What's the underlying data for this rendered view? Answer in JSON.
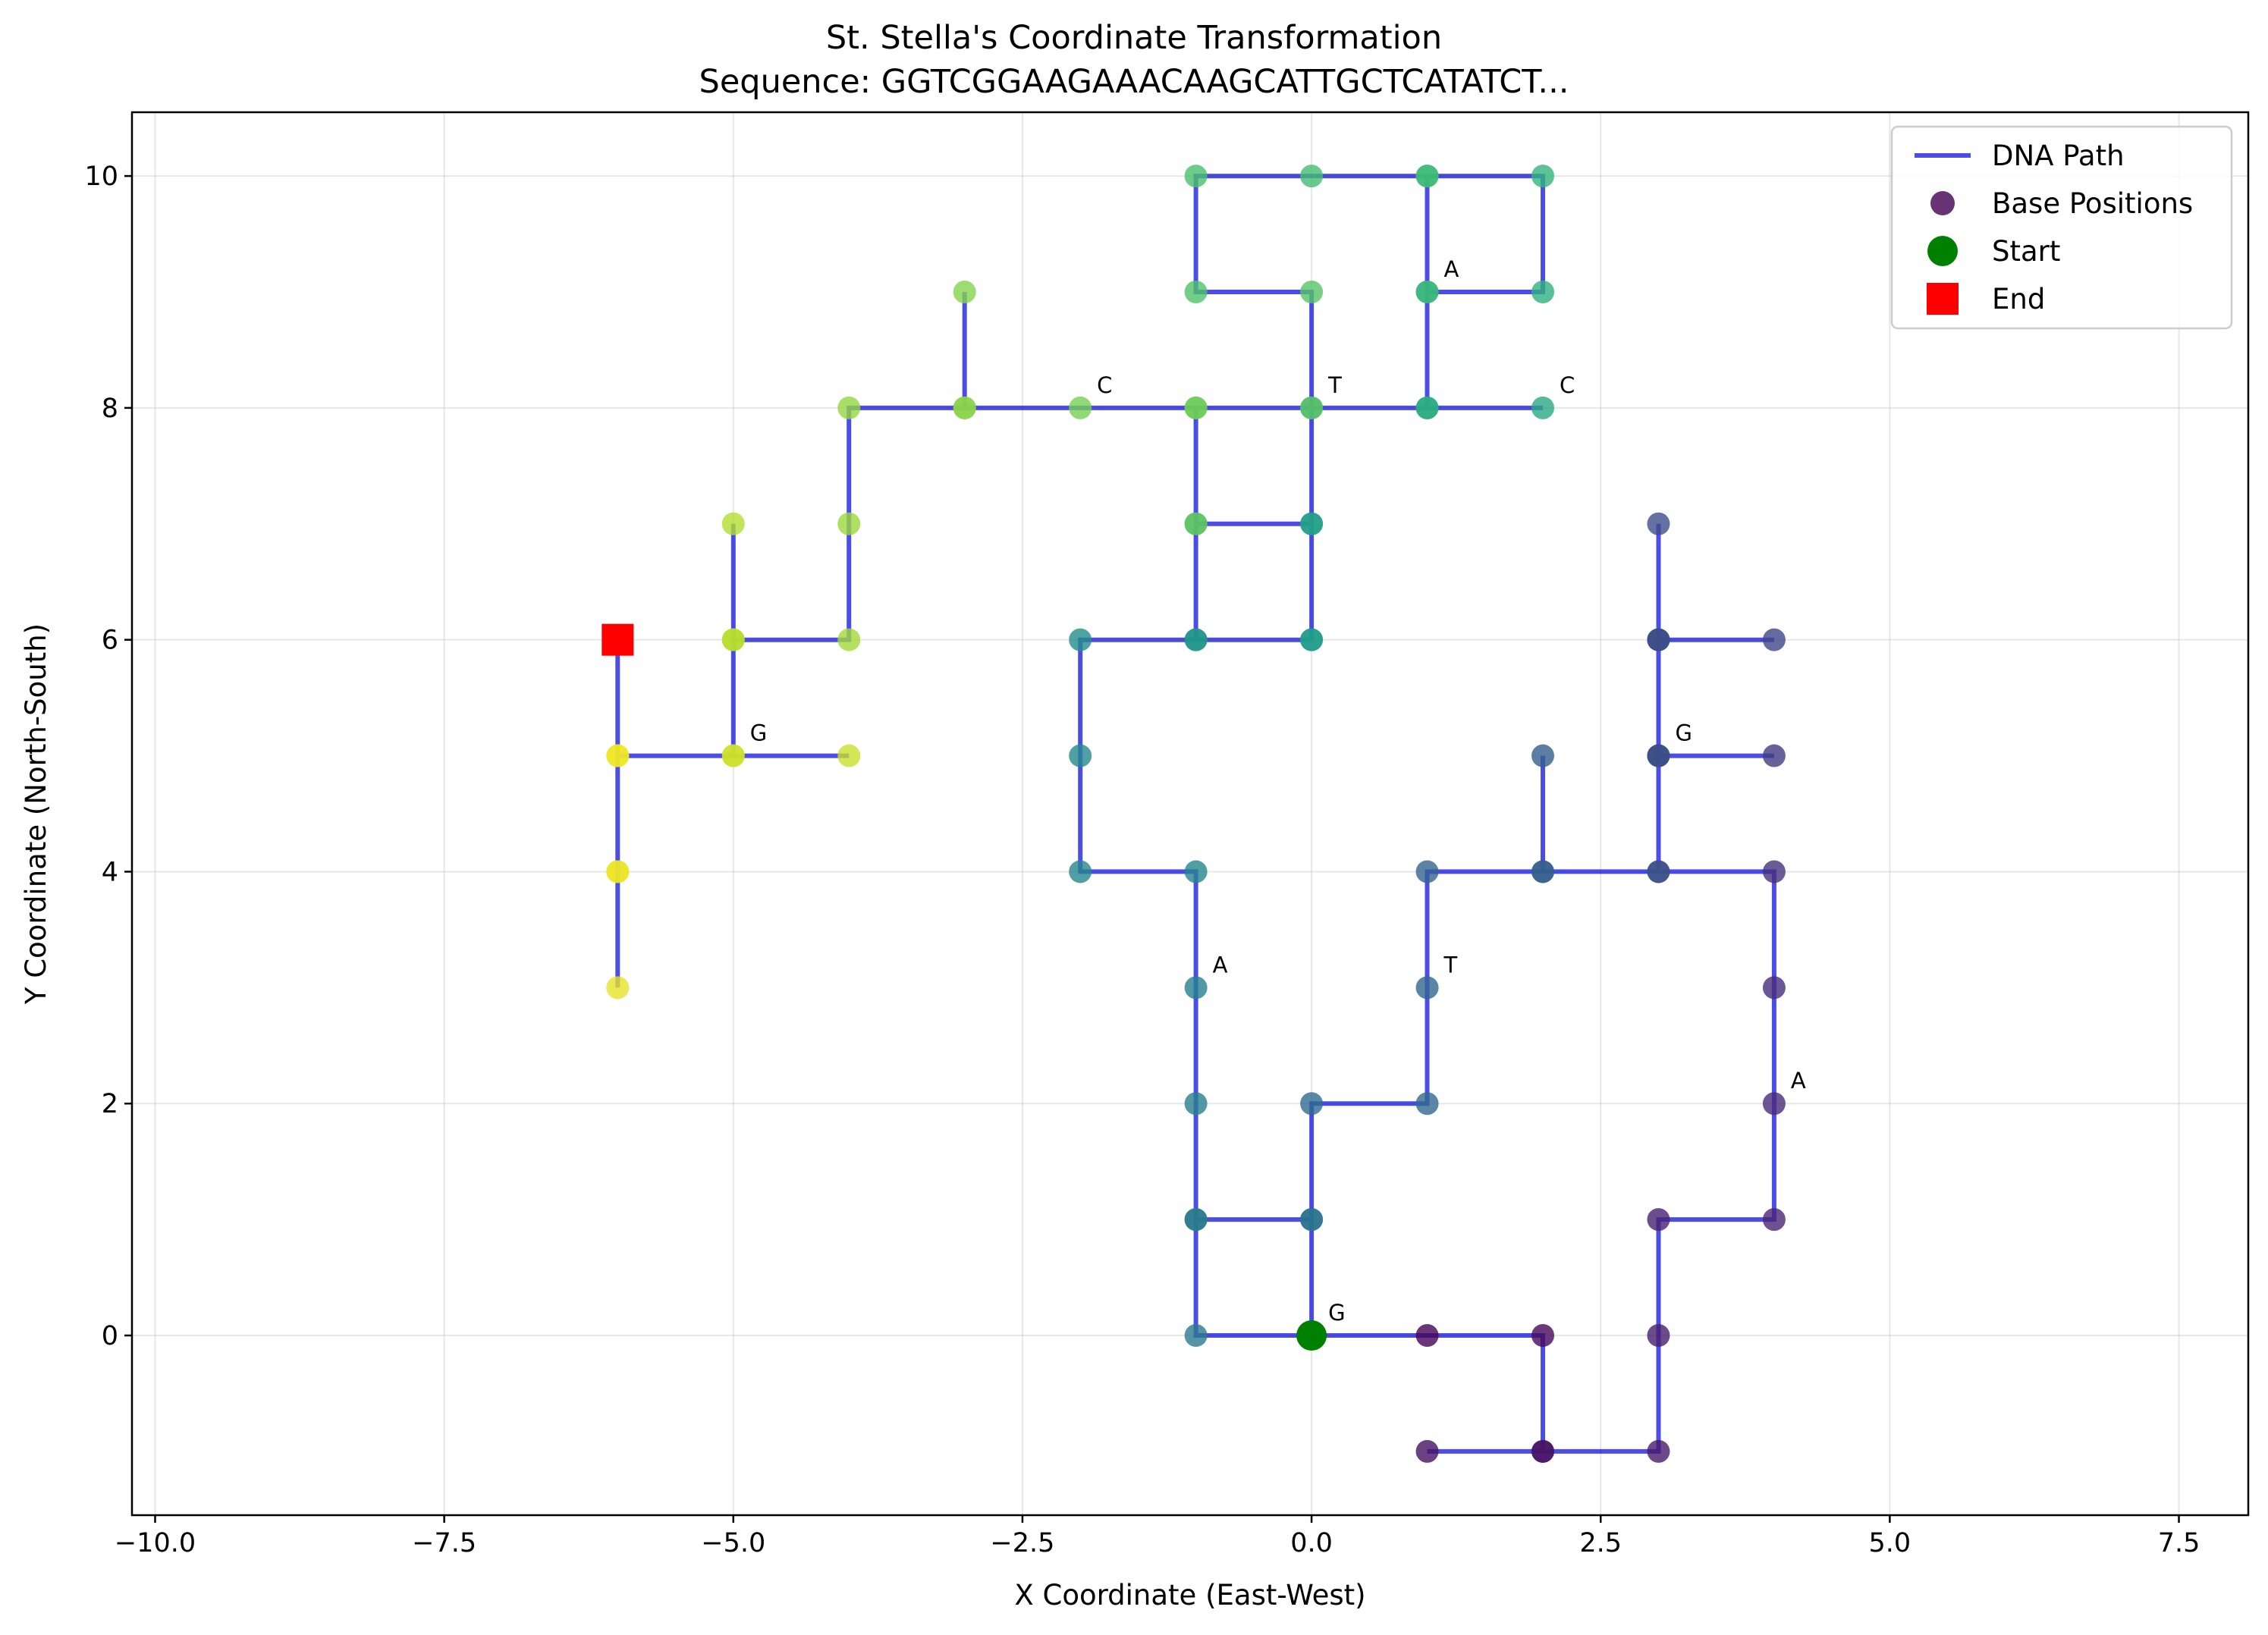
{
  "chart_data": {
    "type": "line",
    "title": "St. Stella's Coordinate Transformation",
    "subtitle": "Sequence: GGTCGGAAGAAACAAGCATTGCTCATATCT...",
    "xlabel": "X Coordinate (East-West)",
    "ylabel": "Y Coordinate (North-South)",
    "xlim": [
      -10.2,
      8.1
    ],
    "ylim": [
      -1.55,
      10.55
    ],
    "xticks": [
      -10.0,
      -7.5,
      -5.0,
      -2.5,
      0.0,
      2.5,
      5.0,
      7.5
    ],
    "xtick_labels": [
      "−10.0",
      "−7.5",
      "−5.0",
      "−2.5",
      "0.0",
      "2.5",
      "5.0",
      "7.5"
    ],
    "yticks": [
      0,
      2,
      4,
      6,
      8,
      10
    ],
    "ytick_labels": [
      "0",
      "2",
      "4",
      "6",
      "8",
      "10"
    ],
    "grid": true,
    "legend_position": "upper right",
    "colormap": "viridis",
    "path": {
      "name": "DNA Path",
      "color": "#0000dd",
      "points": [
        [
          0,
          0
        ],
        [
          1,
          0
        ],
        [
          2,
          0
        ],
        [
          2,
          -1
        ],
        [
          1,
          -1
        ],
        [
          2,
          -1
        ],
        [
          3,
          -1
        ],
        [
          3,
          0
        ],
        [
          3,
          1
        ],
        [
          4,
          1
        ],
        [
          4,
          2
        ],
        [
          4,
          3
        ],
        [
          4,
          4
        ],
        [
          3,
          4
        ],
        [
          3,
          5
        ],
        [
          4,
          5
        ],
        [
          3,
          5
        ],
        [
          3,
          6
        ],
        [
          4,
          6
        ],
        [
          3,
          6
        ],
        [
          3,
          7
        ],
        [
          3,
          6
        ],
        [
          3,
          5
        ],
        [
          3,
          4
        ],
        [
          2,
          4
        ],
        [
          2,
          5
        ],
        [
          2,
          4
        ],
        [
          1,
          4
        ],
        [
          1,
          3
        ],
        [
          1,
          2
        ],
        [
          0,
          2
        ],
        [
          0,
          1
        ],
        [
          -1,
          1
        ],
        [
          0,
          1
        ],
        [
          0,
          0
        ],
        [
          -1,
          0
        ],
        [
          -1,
          1
        ],
        [
          -1,
          2
        ],
        [
          -1,
          3
        ],
        [
          -1,
          4
        ],
        [
          -2,
          4
        ],
        [
          -2,
          5
        ],
        [
          -2,
          6
        ],
        [
          -1,
          6
        ],
        [
          0,
          6
        ],
        [
          -1,
          6
        ],
        [
          -1,
          7
        ],
        [
          0,
          7
        ],
        [
          0,
          6
        ],
        [
          0,
          7
        ],
        [
          0,
          8
        ],
        [
          1,
          8
        ],
        [
          2,
          8
        ],
        [
          1,
          8
        ],
        [
          1,
          9
        ],
        [
          2,
          9
        ],
        [
          2,
          10
        ],
        [
          1,
          10
        ],
        [
          1,
          9
        ],
        [
          1,
          10
        ],
        [
          0,
          10
        ],
        [
          -1,
          10
        ],
        [
          -1,
          9
        ],
        [
          0,
          9
        ],
        [
          0,
          8
        ],
        [
          -1,
          8
        ],
        [
          -1,
          7
        ],
        [
          -1,
          8
        ],
        [
          -2,
          8
        ],
        [
          -3,
          8
        ],
        [
          -3,
          9
        ],
        [
          -3,
          8
        ],
        [
          -4,
          8
        ],
        [
          -4,
          7
        ],
        [
          -4,
          6
        ],
        [
          -5,
          6
        ],
        [
          -5,
          7
        ],
        [
          -5,
          6
        ],
        [
          -5,
          5
        ],
        [
          -4,
          5
        ],
        [
          -5,
          5
        ],
        [
          -6,
          5
        ],
        [
          -6,
          4
        ],
        [
          -6,
          3
        ],
        [
          -6,
          4
        ],
        [
          -6,
          5
        ],
        [
          -6,
          6
        ]
      ]
    },
    "series": [
      {
        "name": "Base Positions",
        "marker": "circle",
        "colormap": "viridis"
      },
      {
        "name": "Start",
        "x": 0,
        "y": 0,
        "color": "#008000",
        "marker": "circle"
      },
      {
        "name": "End",
        "x": -6,
        "y": 6,
        "color": "#ff0000",
        "marker": "square"
      }
    ],
    "annotations": [
      {
        "text": "G",
        "x": 0,
        "y": 0
      },
      {
        "text": "A",
        "x": 4,
        "y": 2
      },
      {
        "text": "G",
        "x": 3,
        "y": 5
      },
      {
        "text": "T",
        "x": 1,
        "y": 3
      },
      {
        "text": "A",
        "x": -1,
        "y": 3
      },
      {
        "text": "T",
        "x": 0,
        "y": 8
      },
      {
        "text": "A",
        "x": 1,
        "y": 9
      },
      {
        "text": "C",
        "x": 2,
        "y": 8
      },
      {
        "text": "C",
        "x": -2,
        "y": 8
      },
      {
        "text": "G",
        "x": -5,
        "y": 5
      }
    ]
  }
}
